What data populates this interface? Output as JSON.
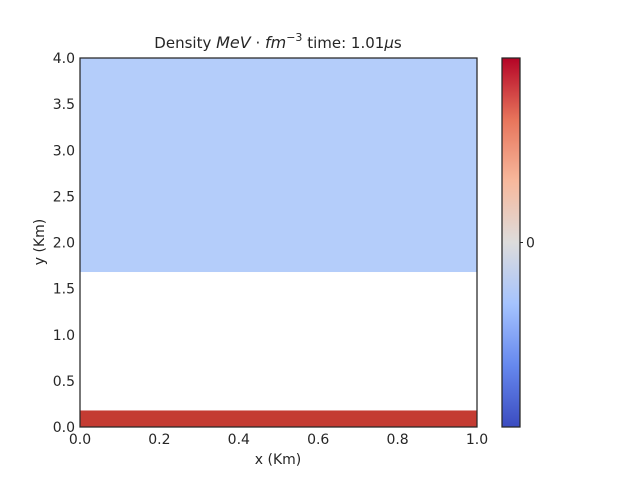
{
  "chart_data": {
    "type": "heatmap",
    "title": {
      "prefix": "Density ",
      "math_main": "MeV",
      "math_dot": " · ",
      "math_unit": "fm",
      "math_exp": "−3",
      "suffix_before_mu": " time: 1.01",
      "mu": "μ",
      "suffix_unit": "s"
    },
    "xlabel": "x (Km)",
    "ylabel": "y (Km)",
    "xlim": [
      0.0,
      1.0
    ],
    "ylim": [
      0.0,
      4.0
    ],
    "xticks": [
      0.0,
      0.2,
      0.4,
      0.6,
      0.8,
      1.0
    ],
    "xtick_labels": [
      "0.0",
      "0.2",
      "0.4",
      "0.6",
      "0.8",
      "1.0"
    ],
    "yticks": [
      0.0,
      0.5,
      1.0,
      1.5,
      2.0,
      2.5,
      3.0,
      3.5,
      4.0
    ],
    "ytick_labels": [
      "0.0",
      "0.5",
      "1.0",
      "1.5",
      "2.0",
      "2.5",
      "3.0",
      "3.5",
      "4.0"
    ],
    "regions": [
      {
        "name": "dense-bottom-layer",
        "y0": 0.0,
        "y1": 0.18,
        "color": "#c43b32"
      },
      {
        "name": "empty-middle-region",
        "y0": 0.18,
        "y1": 1.68,
        "color": "#ffffff"
      },
      {
        "name": "light-upper-region",
        "y0": 1.68,
        "y1": 4.0,
        "color": "#b4cdfa"
      }
    ],
    "colorbar": {
      "tick_labels": [
        "0"
      ],
      "tick_fraction": 0.5,
      "colormap": "coolwarm",
      "stops": [
        "#3b4cc0",
        "#6688ee",
        "#a5c3fe",
        "#dddcdc",
        "#f7b89c",
        "#e7745b",
        "#b40426"
      ]
    },
    "grid": false
  }
}
